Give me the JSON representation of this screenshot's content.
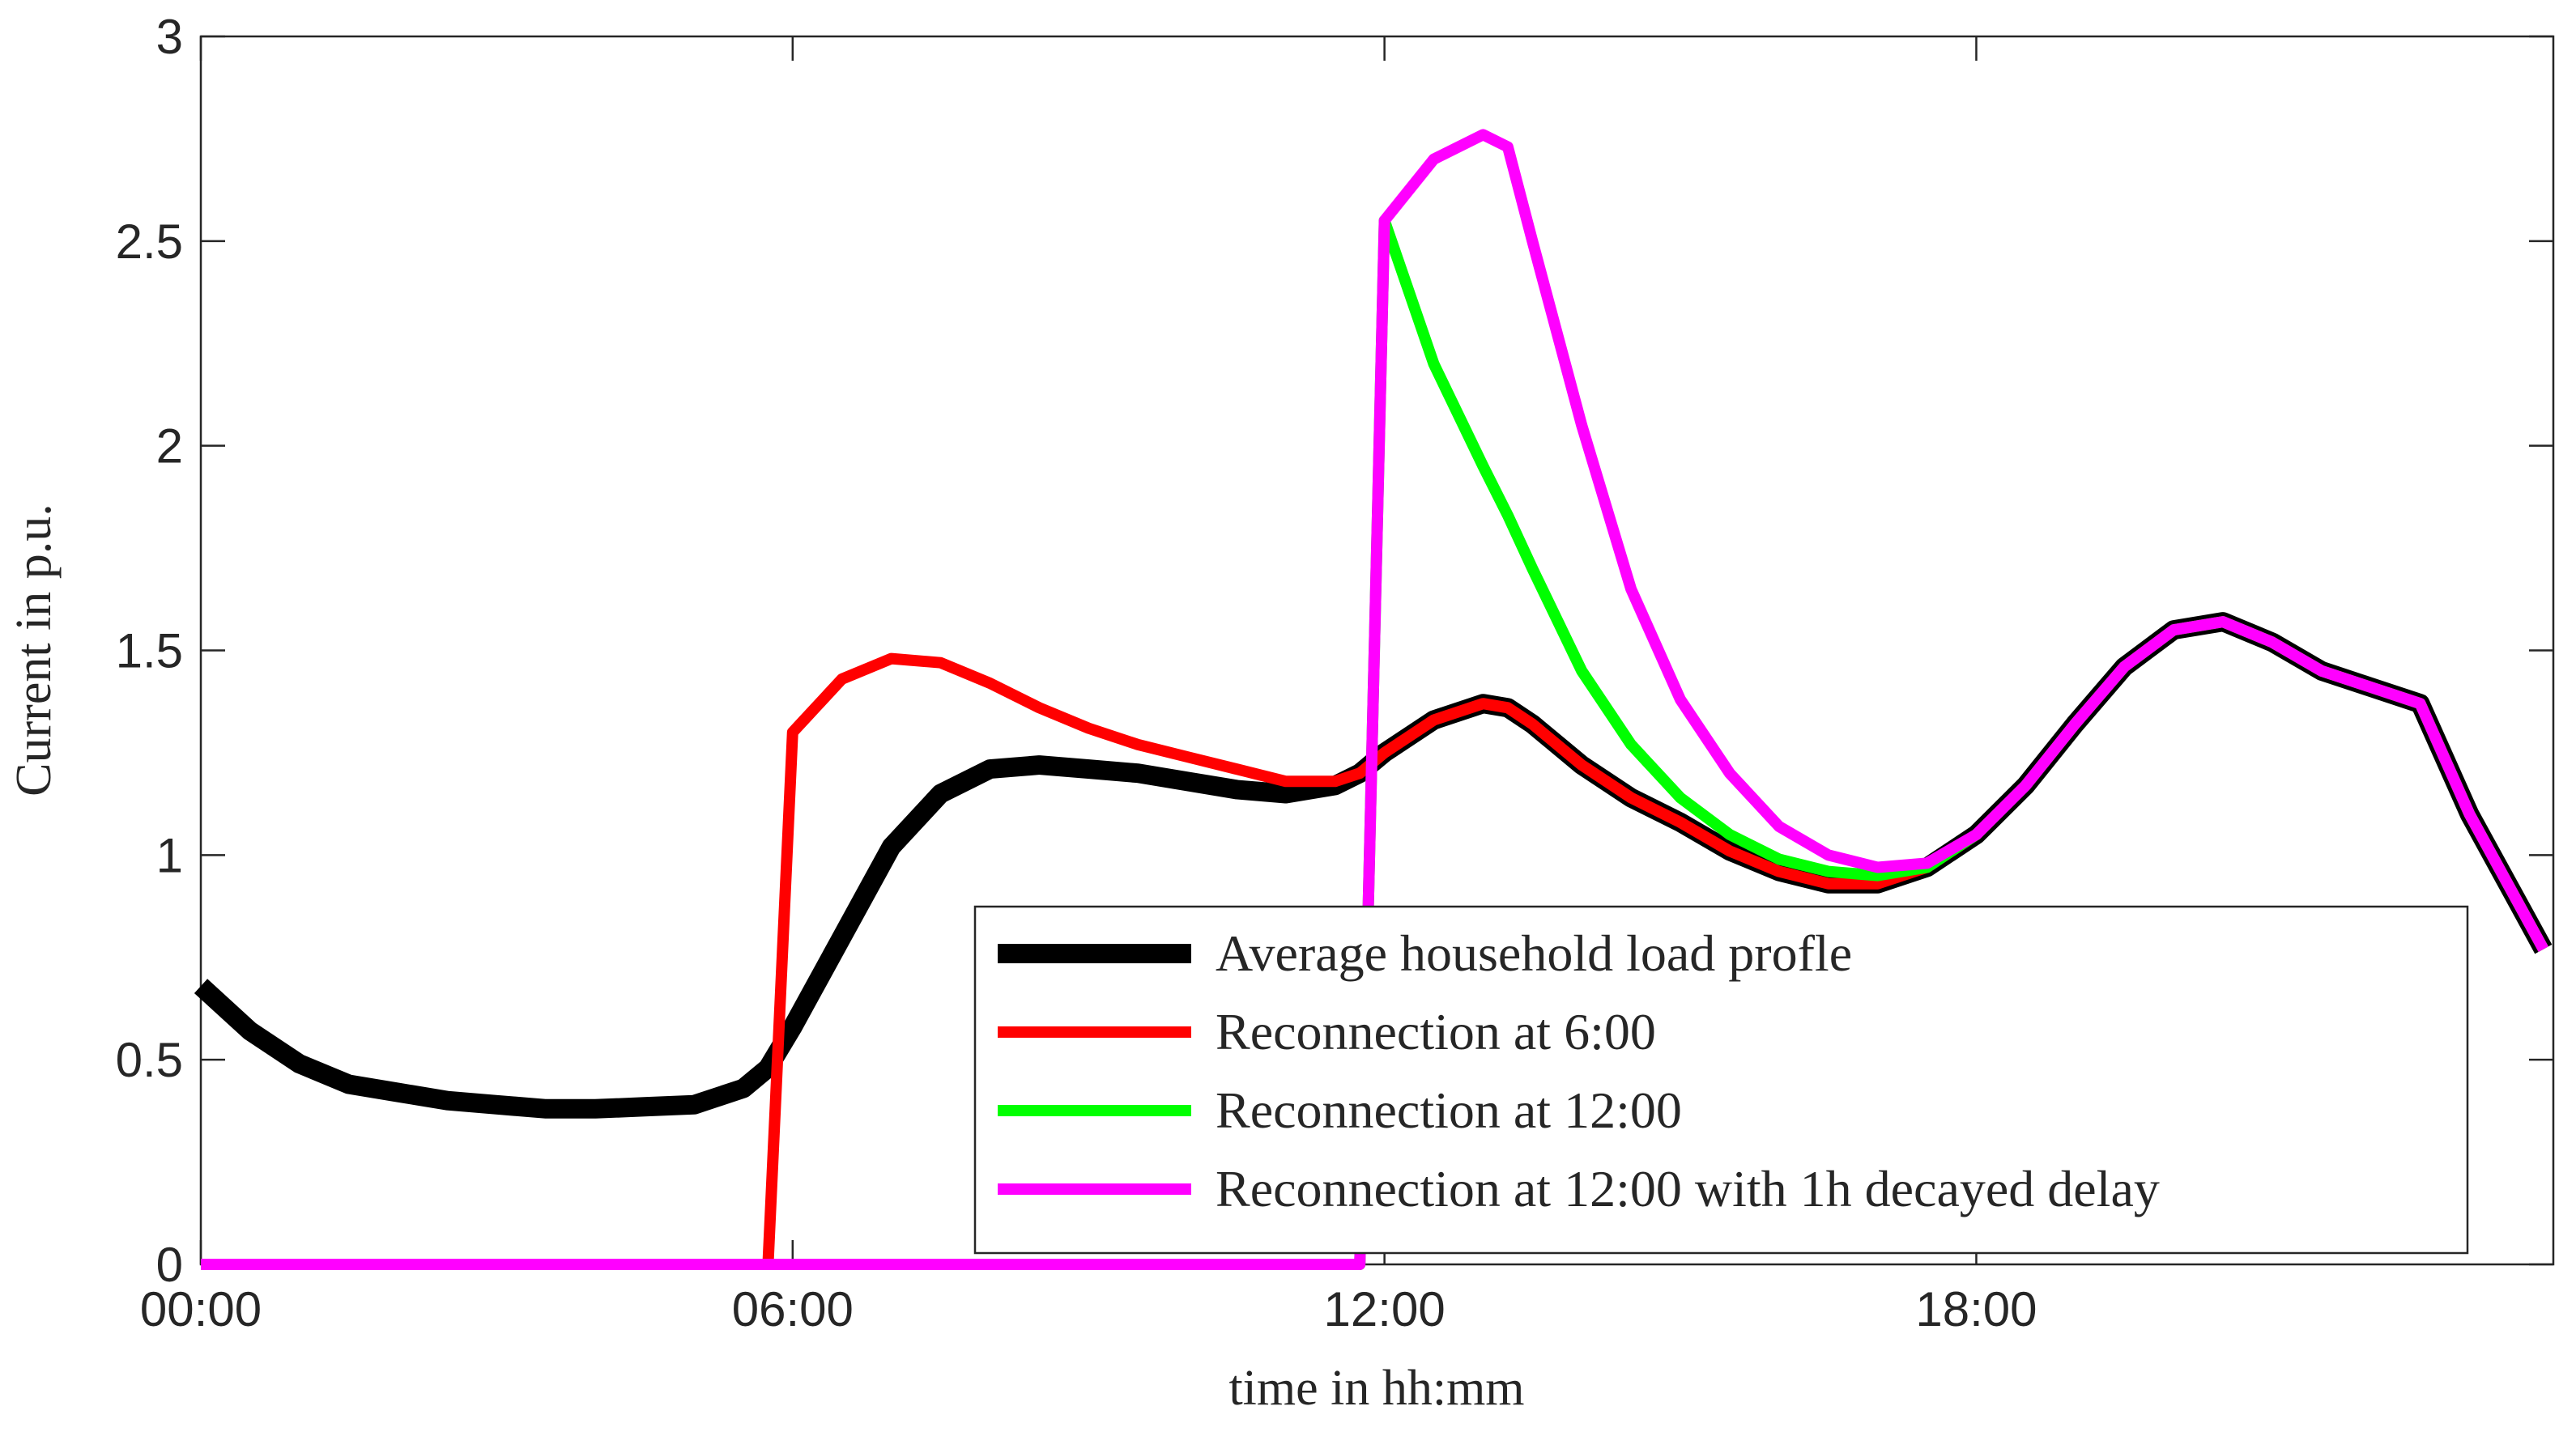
{
  "chart_data": {
    "type": "line",
    "xlabel": "time in hh:mm",
    "ylabel": "Current in p.u.",
    "x": [
      0,
      0.5,
      1,
      1.5,
      2,
      2.5,
      3,
      3.5,
      4,
      4.5,
      5,
      5.5,
      5.75,
      6,
      6.5,
      7,
      7.5,
      8,
      8.5,
      9,
      9.5,
      10,
      10.5,
      11,
      11.5,
      11.75,
      12,
      12.5,
      13,
      13.25,
      13.5,
      14,
      14.5,
      15,
      15.5,
      16,
      16.5,
      17,
      17.5,
      18,
      18.5,
      19,
      19.5,
      20,
      20.5,
      21,
      21.5,
      22,
      22.5,
      23,
      23.5,
      23.75
    ],
    "series": [
      {
        "name": "Average household load profle",
        "color": "#000000",
        "values": [
          0.68,
          0.57,
          0.49,
          0.44,
          0.42,
          0.4,
          0.39,
          0.38,
          0.38,
          0.385,
          0.39,
          0.43,
          0.48,
          0.58,
          0.8,
          1.02,
          1.15,
          1.21,
          1.22,
          1.21,
          1.2,
          1.18,
          1.16,
          1.15,
          1.17,
          1.2,
          1.25,
          1.33,
          1.37,
          1.36,
          1.32,
          1.22,
          1.14,
          1.08,
          1.01,
          0.96,
          0.93,
          0.93,
          0.97,
          1.05,
          1.17,
          1.32,
          1.46,
          1.55,
          1.57,
          1.52,
          1.45,
          1.41,
          1.37,
          1.1,
          0.88,
          0.77
        ]
      },
      {
        "name": "Reconnection at 6:00",
        "color": "#ff0000",
        "values": [
          0,
          0,
          0,
          0,
          0,
          0,
          0,
          0,
          0,
          0,
          0,
          0,
          0,
          1.3,
          1.43,
          1.48,
          1.47,
          1.42,
          1.36,
          1.31,
          1.27,
          1.24,
          1.21,
          1.18,
          1.18,
          1.2,
          1.25,
          1.33,
          1.37,
          1.36,
          1.32,
          1.22,
          1.14,
          1.08,
          1.01,
          0.96,
          0.93,
          0.93,
          0.97,
          1.05,
          1.17,
          1.32,
          1.46,
          1.55,
          1.57,
          1.52,
          1.45,
          1.41,
          1.37,
          1.1,
          0.88,
          0.77
        ]
      },
      {
        "name": "Reconnection at 12:00",
        "color": "#00ff00",
        "values": [
          0,
          0,
          0,
          0,
          0,
          0,
          0,
          0,
          0,
          0,
          0,
          0,
          0,
          0,
          0,
          0,
          0,
          0,
          0,
          0,
          0,
          0,
          0,
          0,
          0,
          0,
          2.55,
          2.2,
          1.95,
          1.83,
          1.7,
          1.45,
          1.27,
          1.14,
          1.05,
          0.99,
          0.96,
          0.95,
          0.97,
          1.05,
          1.17,
          1.32,
          1.46,
          1.55,
          1.57,
          1.52,
          1.45,
          1.41,
          1.37,
          1.1,
          0.88,
          0.77
        ]
      },
      {
        "name": "Reconnection at 12:00 with 1h decayed delay",
        "color": "#ff00ff",
        "values": [
          0,
          0,
          0,
          0,
          0,
          0,
          0,
          0,
          0,
          0,
          0,
          0,
          0,
          0,
          0,
          0,
          0,
          0,
          0,
          0,
          0,
          0,
          0,
          0,
          0,
          0,
          2.55,
          2.7,
          2.76,
          2.73,
          2.5,
          2.05,
          1.65,
          1.38,
          1.2,
          1.07,
          1.0,
          0.97,
          0.98,
          1.05,
          1.17,
          1.32,
          1.46,
          1.55,
          1.57,
          1.52,
          1.45,
          1.41,
          1.37,
          1.1,
          0.88,
          0.77
        ]
      }
    ],
    "xlim": [
      0,
      23.85
    ],
    "xticks": [
      {
        "value": 0,
        "label": "00:00"
      },
      {
        "value": 6,
        "label": "06:00"
      },
      {
        "value": 12,
        "label": "12:00"
      },
      {
        "value": 18,
        "label": "18:00"
      }
    ],
    "ylim": [
      0,
      3
    ],
    "yticks": [
      0,
      0.5,
      1,
      1.5,
      2,
      2.5,
      3
    ],
    "legend": "lower right"
  }
}
